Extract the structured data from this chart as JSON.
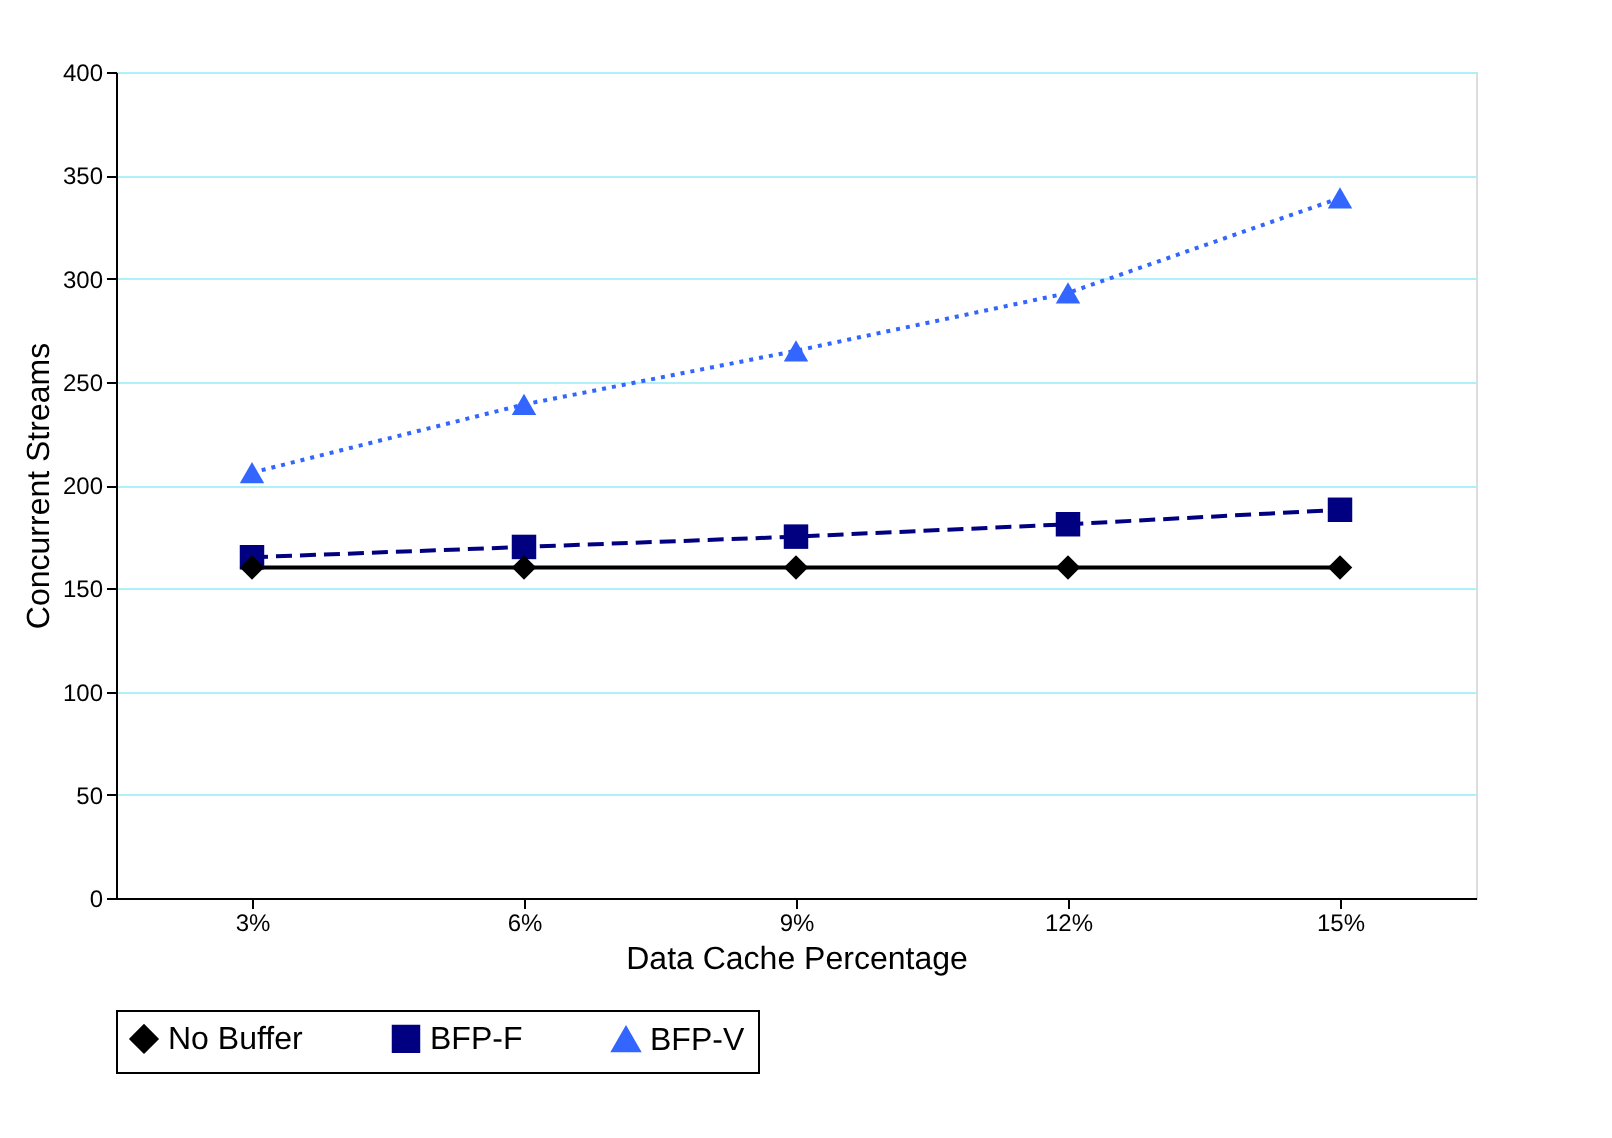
{
  "chart_data": {
    "type": "line",
    "xlabel": "Data Cache Percentage",
    "ylabel": "Concurrent Streams",
    "categories": [
      "3%",
      "6%",
      "9%",
      "12%",
      "15%"
    ],
    "series": [
      {
        "name": "No Buffer",
        "color": "#000000",
        "values": [
          160,
          160,
          160,
          160,
          160
        ],
        "marker": "diamond",
        "line_style": "solid"
      },
      {
        "name": "BFP-F",
        "color": "#000080",
        "values": [
          165,
          170,
          175,
          181,
          188
        ],
        "marker": "square",
        "line_style": "dashed"
      },
      {
        "name": "BFP-V",
        "color": "#3366ff",
        "values": [
          206,
          239,
          265,
          293,
          339
        ],
        "marker": "triangle",
        "line_style": "dotted"
      }
    ],
    "ylim": [
      0,
      400
    ],
    "yticks": [
      0,
      50,
      100,
      150,
      200,
      250,
      300,
      350,
      400
    ],
    "grid": "y",
    "legend": "bottom"
  }
}
